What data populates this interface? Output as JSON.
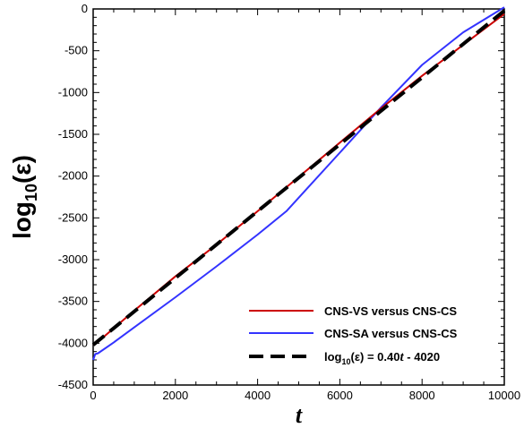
{
  "chart_data": {
    "type": "line",
    "xlabel": "t",
    "ylabel": {
      "base": "log",
      "sub": "10",
      "rest": "(ε)"
    },
    "xlim": [
      0,
      10000
    ],
    "ylim": [
      -4500,
      0
    ],
    "xticks": [
      0,
      2000,
      4000,
      6000,
      8000,
      10000
    ],
    "yticks": [
      0,
      -500,
      -1000,
      -1500,
      -2000,
      -2500,
      -3000,
      -3500,
      -4000,
      -4500
    ],
    "xtick_labels": [
      "0",
      "2000",
      "4000",
      "6000",
      "8000",
      "10000"
    ],
    "ytick_labels": [
      "0",
      "-500",
      "-1000",
      "-1500",
      "-2000",
      "-2500",
      "-3000",
      "-3500",
      "-4000",
      "-4500"
    ],
    "grid": false,
    "legend_position": "bottom-right",
    "series": [
      {
        "name": "CNS-VS versus CNS-CS",
        "color": "#cc0000",
        "style": "solid",
        "x": [
          0,
          100,
          1000,
          2000,
          3000,
          4000,
          5000,
          6000,
          7000,
          8000,
          9000,
          10000
        ],
        "y": [
          -4020,
          -3990,
          -3610,
          -3200,
          -2820,
          -2420,
          -2010,
          -1600,
          -1190,
          -800,
          -430,
          -60
        ]
      },
      {
        "name": "CNS-SA versus CNS-CS",
        "color": "#3333ff",
        "style": "solid",
        "x": [
          0,
          50,
          120,
          500,
          1000,
          2000,
          3000,
          4000,
          4700,
          5200,
          6000,
          7000,
          8000,
          9000,
          10000
        ],
        "y": [
          -4200,
          -4130,
          -4120,
          -3990,
          -3810,
          -3450,
          -3080,
          -2700,
          -2420,
          -2150,
          -1720,
          -1180,
          -670,
          -280,
          20
        ]
      },
      {
        "name": "log10(ε) = 0.40t - 4020",
        "legend_label": {
          "base": "log",
          "sub": "10",
          "mid": "(ε) = 0.40",
          "var": "t",
          "tail": " - 4020"
        },
        "color": "#000000",
        "style": "dashed",
        "x": [
          0,
          10000
        ],
        "y": [
          -4020,
          -20
        ]
      }
    ]
  }
}
